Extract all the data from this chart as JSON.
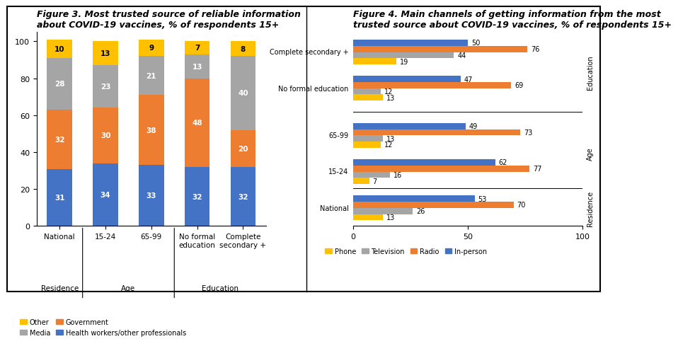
{
  "fig3": {
    "title": "Figure 3. Most trusted source of reliable information\nabout COVID-19 vaccines, % of respondents 15+",
    "categories": [
      "National",
      "15-24",
      "65-99",
      "No formal\neducation",
      "Complete\nsecondary +"
    ],
    "health_workers": [
      31,
      34,
      33,
      32,
      32
    ],
    "government": [
      32,
      30,
      38,
      48,
      20
    ],
    "media": [
      28,
      23,
      21,
      13,
      40
    ],
    "other": [
      10,
      13,
      9,
      7,
      8
    ],
    "colors": {
      "health_workers": "#4472C4",
      "government": "#ED7D31",
      "media": "#A5A5A5",
      "other": "#FFC000"
    }
  },
  "fig4": {
    "title": "Figure 4. Main channels of getting information from the most\ntrusted source about COVID-19 vaccines, % of respondents 15+",
    "cat_labels": [
      "National",
      "15-24",
      "65-99",
      "No formal education",
      "Complete secondary +"
    ],
    "group_centers": [
      0,
      1.0,
      2.0,
      3.3,
      4.3
    ],
    "phone": [
      13,
      7,
      12,
      13,
      19
    ],
    "television": [
      26,
      16,
      13,
      12,
      44
    ],
    "radio": [
      70,
      77,
      73,
      69,
      76
    ],
    "in_person": [
      53,
      62,
      49,
      47,
      50
    ],
    "colors": {
      "phone": "#FFC000",
      "television": "#A5A5A5",
      "radio": "#ED7D31",
      "in_person": "#4472C4"
    }
  },
  "background_color": "#FFFFFF",
  "title_fontsize": 9.0,
  "tick_fontsize": 8.0,
  "label_fontsize": 8.0,
  "legend_fontsize": 7.5
}
